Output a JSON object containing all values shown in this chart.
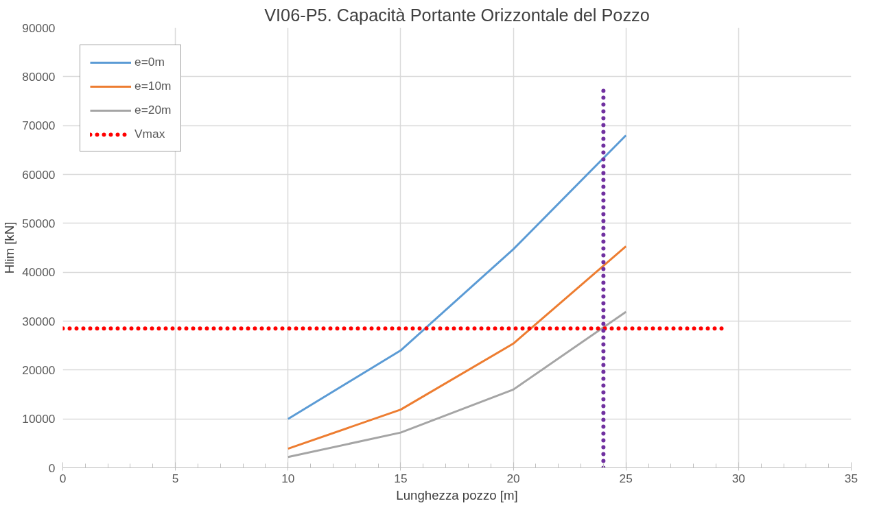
{
  "chart_data": {
    "type": "line",
    "title": "VI06-P5. Capacità Portante Orizzontale del Pozzo",
    "xlabel": "Lunghezza pozzo [m]",
    "ylabel": "Hlim [kN]",
    "x": [
      10,
      15,
      20,
      25
    ],
    "series": [
      {
        "name": "e=0m",
        "color": "#5b9bd5",
        "values": [
          10000,
          24000,
          44700,
          68000
        ]
      },
      {
        "name": "e=10m",
        "color": "#ed7d31",
        "values": [
          3900,
          11900,
          25400,
          45300
        ]
      },
      {
        "name": "e=20m",
        "color": "#a5a5a5",
        "values": [
          2200,
          7200,
          16000,
          31900
        ]
      },
      {
        "name": "Vmax",
        "color": "#ff0000",
        "x": [
          0,
          29.5
        ],
        "values": [
          28500,
          28500
        ],
        "line_style": "dotted"
      },
      {
        "color": "#7030a0",
        "x": [
          24,
          24
        ],
        "values": [
          0,
          78000
        ],
        "line_style": "dotted"
      }
    ],
    "xlim": [
      0,
      35
    ],
    "xticks": [
      0,
      5,
      10,
      15,
      20,
      25,
      30,
      35
    ],
    "ylim": [
      0,
      90000
    ],
    "yticks": [
      0,
      10000,
      20000,
      30000,
      40000,
      50000,
      60000,
      70000,
      80000,
      90000
    ],
    "grid": true,
    "legend": "top left",
    "line_style": "solid",
    "marker": "none"
  }
}
